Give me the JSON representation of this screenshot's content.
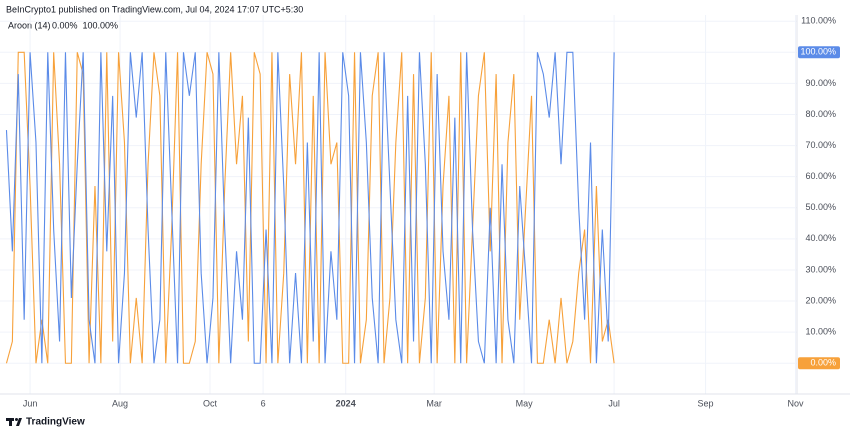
{
  "header": "BeInCrypto1 published on TradingView.com, Jul 04, 2024 17:07 UTC+5:30",
  "footer": "TradingView",
  "chart_data": {
    "type": "line",
    "title": "Aroon (14)",
    "x": [
      -16,
      -12,
      -8,
      -4,
      0,
      4,
      8,
      12,
      16,
      20,
      24,
      28,
      32,
      36,
      40,
      44,
      48,
      52,
      56,
      60,
      64,
      68,
      72,
      76,
      80,
      84,
      88,
      92,
      96,
      100,
      104,
      108,
      112,
      116,
      120,
      124,
      128,
      132,
      136,
      140,
      144,
      148,
      152,
      156,
      160,
      164,
      168,
      172,
      176,
      180,
      184,
      188,
      192,
      196,
      200,
      204,
      208,
      212,
      216,
      220,
      224,
      228,
      232,
      236,
      240,
      244,
      248,
      252,
      256,
      260,
      264,
      268,
      272,
      276,
      280,
      284,
      288,
      292,
      296,
      300,
      304,
      308,
      312,
      316,
      320,
      324,
      328,
      332,
      336,
      340,
      344,
      348,
      352,
      356,
      360,
      364,
      368,
      372,
      376,
      380,
      384,
      388,
      392,
      396
    ],
    "series": [
      {
        "color": "#f7a13a",
        "current": {
          "value": 0,
          "label": "0.00%"
        },
        "values": [
          0,
          7,
          100,
          100,
          57,
          0,
          14,
          0,
          100,
          64,
          0,
          0,
          100,
          93,
          0,
          57,
          0,
          100,
          7,
          100,
          71,
          0,
          21,
          0,
          64,
          100,
          86,
          0,
          43,
          100,
          0,
          0,
          7,
          64,
          100,
          93,
          0,
          57,
          100,
          64,
          86,
          7,
          100,
          93,
          0,
          100,
          0,
          29,
          93,
          64,
          100,
          0,
          86,
          0,
          100,
          64,
          71,
          0,
          0,
          100,
          0,
          14,
          86,
          100,
          0,
          21,
          71,
          100,
          0,
          93,
          0,
          21,
          100,
          0,
          57,
          86,
          0,
          100,
          0,
          43,
          86,
          100,
          36,
          93,
          0,
          71,
          93,
          14,
          50,
          86,
          0,
          0,
          14,
          0,
          21,
          0,
          7,
          29,
          43,
          0,
          57,
          7,
          14,
          0
        ]
      },
      {
        "color": "#5b8be8",
        "current": {
          "value": 100,
          "label": "100.00%"
        },
        "values": [
          75,
          36,
          93,
          14,
          100,
          71,
          0,
          100,
          43,
          7,
          100,
          21,
          64,
          100,
          14,
          0,
          100,
          36,
          86,
          0,
          29,
          100,
          79,
          100,
          43,
          0,
          14,
          100,
          50,
          0,
          100,
          86,
          100,
          29,
          0,
          21,
          100,
          43,
          0,
          36,
          14,
          79,
          0,
          0,
          43,
          0,
          100,
          57,
          0,
          29,
          0,
          71,
          7,
          100,
          0,
          36,
          14,
          100,
          86,
          0,
          100,
          71,
          21,
          0,
          100,
          57,
          14,
          0,
          86,
          7,
          100,
          64,
          0,
          93,
          36,
          14,
          79,
          0,
          100,
          43,
          7,
          0,
          50,
          0,
          64,
          14,
          0,
          57,
          29,
          0,
          100,
          93,
          79,
          100,
          64,
          100,
          100,
          50,
          14,
          71,
          0,
          43,
          7,
          100
        ]
      }
    ],
    "xlim": [
      -17,
      520
    ],
    "xticks": [
      {
        "value": 0,
        "label": "Jun"
      },
      {
        "value": 61,
        "label": "Aug"
      },
      {
        "value": 122,
        "label": "Oct"
      },
      {
        "value": 158,
        "label": "6"
      },
      {
        "value": 214,
        "label": "2024"
      },
      {
        "value": 274,
        "label": "Mar"
      },
      {
        "value": 335,
        "label": "May"
      },
      {
        "value": 396,
        "label": "Jul"
      },
      {
        "value": 458,
        "label": "Sep"
      },
      {
        "value": 519,
        "label": "Nov"
      }
    ],
    "ylim": [
      -7,
      112
    ],
    "yticks": [
      {
        "value": 0,
        "label": "0.00%"
      },
      {
        "value": 10,
        "label": "10.00%"
      },
      {
        "value": 20,
        "label": "20.00%"
      },
      {
        "value": 30,
        "label": "30.00%"
      },
      {
        "value": 40,
        "label": "40.00%"
      },
      {
        "value": 50,
        "label": "50.00%"
      },
      {
        "value": 60,
        "label": "60.00%"
      },
      {
        "value": 70,
        "label": "70.00%"
      },
      {
        "value": 80,
        "label": "80.00%"
      },
      {
        "value": 90,
        "label": "90.00%"
      },
      {
        "value": 100,
        "label": "100.00%"
      },
      {
        "value": 110,
        "label": "110.00%"
      }
    ],
    "grid": true
  }
}
